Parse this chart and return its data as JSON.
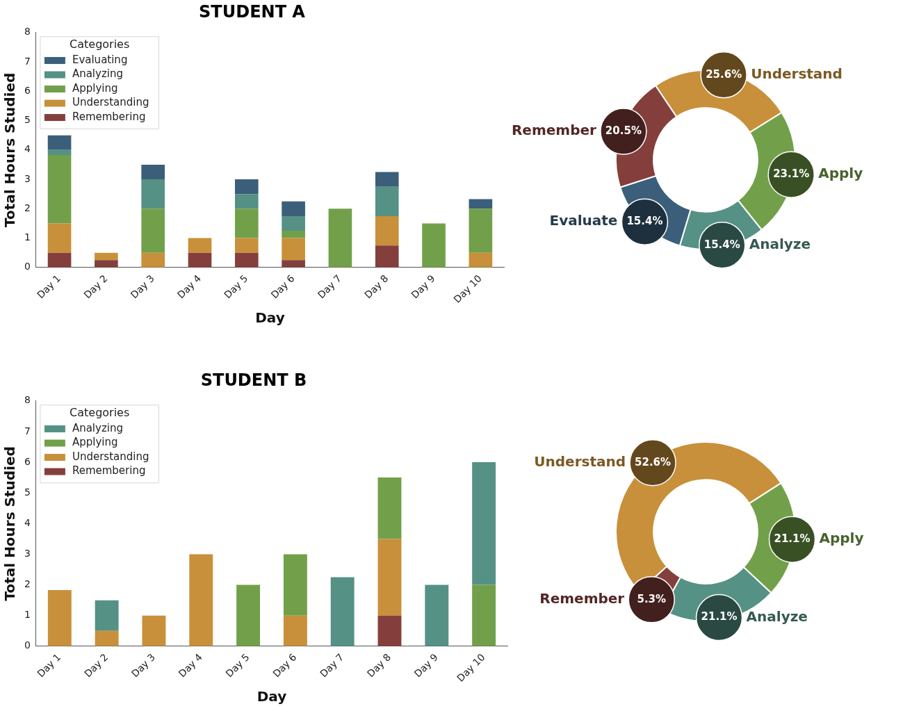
{
  "chart_data": [
    {
      "type": "bar",
      "title": "STUDENT A",
      "xlabel": "Day",
      "ylabel": "Total Hours Studied",
      "categories": [
        "Day 1",
        "Day 2",
        "Day 3",
        "Day 4",
        "Day 5",
        "Day 6",
        "Day 7",
        "Day 8",
        "Day 9",
        "Day 10"
      ],
      "stacked": true,
      "legend": "top left",
      "legend_title": "Categories",
      "grid": false,
      "ylim": [
        0,
        8
      ],
      "yticks": [
        0,
        1,
        2,
        3,
        4,
        5,
        6,
        7,
        8
      ],
      "series": [
        {
          "name": "Remembering",
          "color": "#843f3c",
          "values": [
            0.5,
            0.25,
            0,
            0.5,
            0.5,
            0.25,
            0,
            0.75,
            0,
            0
          ]
        },
        {
          "name": "Understanding",
          "color": "#c8903a",
          "values": [
            1,
            0.25,
            0.5,
            0.5,
            0.5,
            0.75,
            0,
            1,
            0,
            0.5
          ]
        },
        {
          "name": "Applying",
          "color": "#72a04a",
          "values": [
            2.33,
            0,
            1.5,
            0,
            1,
            0.25,
            2,
            0,
            1.5,
            1.5
          ]
        },
        {
          "name": "Analyzing",
          "color": "#559185",
          "values": [
            0.17,
            0,
            1,
            0,
            0.5,
            0.5,
            0,
            1,
            0,
            0
          ]
        },
        {
          "name": "Evaluating",
          "color": "#3b5f7a",
          "values": [
            0.5,
            0,
            0.5,
            0,
            0.5,
            0.5,
            0,
            0.5,
            0,
            0.33
          ]
        }
      ]
    },
    {
      "type": "donut",
      "categories": [
        "Understand",
        "Apply",
        "Analyze",
        "Evaluate",
        "Remember"
      ],
      "values": [
        25.6,
        23.1,
        15.4,
        15.4,
        20.5
      ],
      "colors": [
        "#c8903a",
        "#72a04a",
        "#559185",
        "#3b5f7a",
        "#843f3c"
      ],
      "value_labels": [
        "25.6%",
        "23.1%",
        "15.4%",
        "15.4%",
        "20.5%"
      ]
    },
    {
      "type": "bar",
      "title": "STUDENT B",
      "xlabel": "Day",
      "ylabel": "Total Hours Studied",
      "categories": [
        "Day 1",
        "Day 2",
        "Day 3",
        "Day 4",
        "Day 5",
        "Day 6",
        "Day 7",
        "Day 8",
        "Day 9",
        "Day 10"
      ],
      "stacked": true,
      "legend": "top left",
      "legend_title": "Categories",
      "grid": false,
      "ylim": [
        0,
        8
      ],
      "yticks": [
        0,
        1,
        2,
        3,
        4,
        5,
        6,
        7,
        8
      ],
      "series": [
        {
          "name": "Remembering",
          "color": "#843f3c",
          "values": [
            0,
            0,
            0,
            0,
            0,
            0,
            0,
            1,
            0,
            0
          ]
        },
        {
          "name": "Understanding",
          "color": "#c8903a",
          "values": [
            1.83,
            0.5,
            1,
            3,
            0,
            1,
            0,
            2.5,
            0,
            0
          ]
        },
        {
          "name": "Applying",
          "color": "#72a04a",
          "values": [
            0,
            0,
            0,
            0,
            2,
            2,
            0,
            2,
            0,
            2
          ]
        },
        {
          "name": "Analyzing",
          "color": "#559185",
          "values": [
            0,
            1,
            0,
            0,
            0,
            0,
            2.25,
            0,
            2,
            4
          ]
        }
      ]
    },
    {
      "type": "donut",
      "categories": [
        "Understand",
        "Apply",
        "Analyze",
        "Remember"
      ],
      "values": [
        52.6,
        21.1,
        21.1,
        5.3
      ],
      "colors": [
        "#c8903a",
        "#72a04a",
        "#559185",
        "#843f3c"
      ],
      "value_labels": [
        "52.6%",
        "21.1%",
        "21.1%",
        "5.3%"
      ]
    }
  ]
}
